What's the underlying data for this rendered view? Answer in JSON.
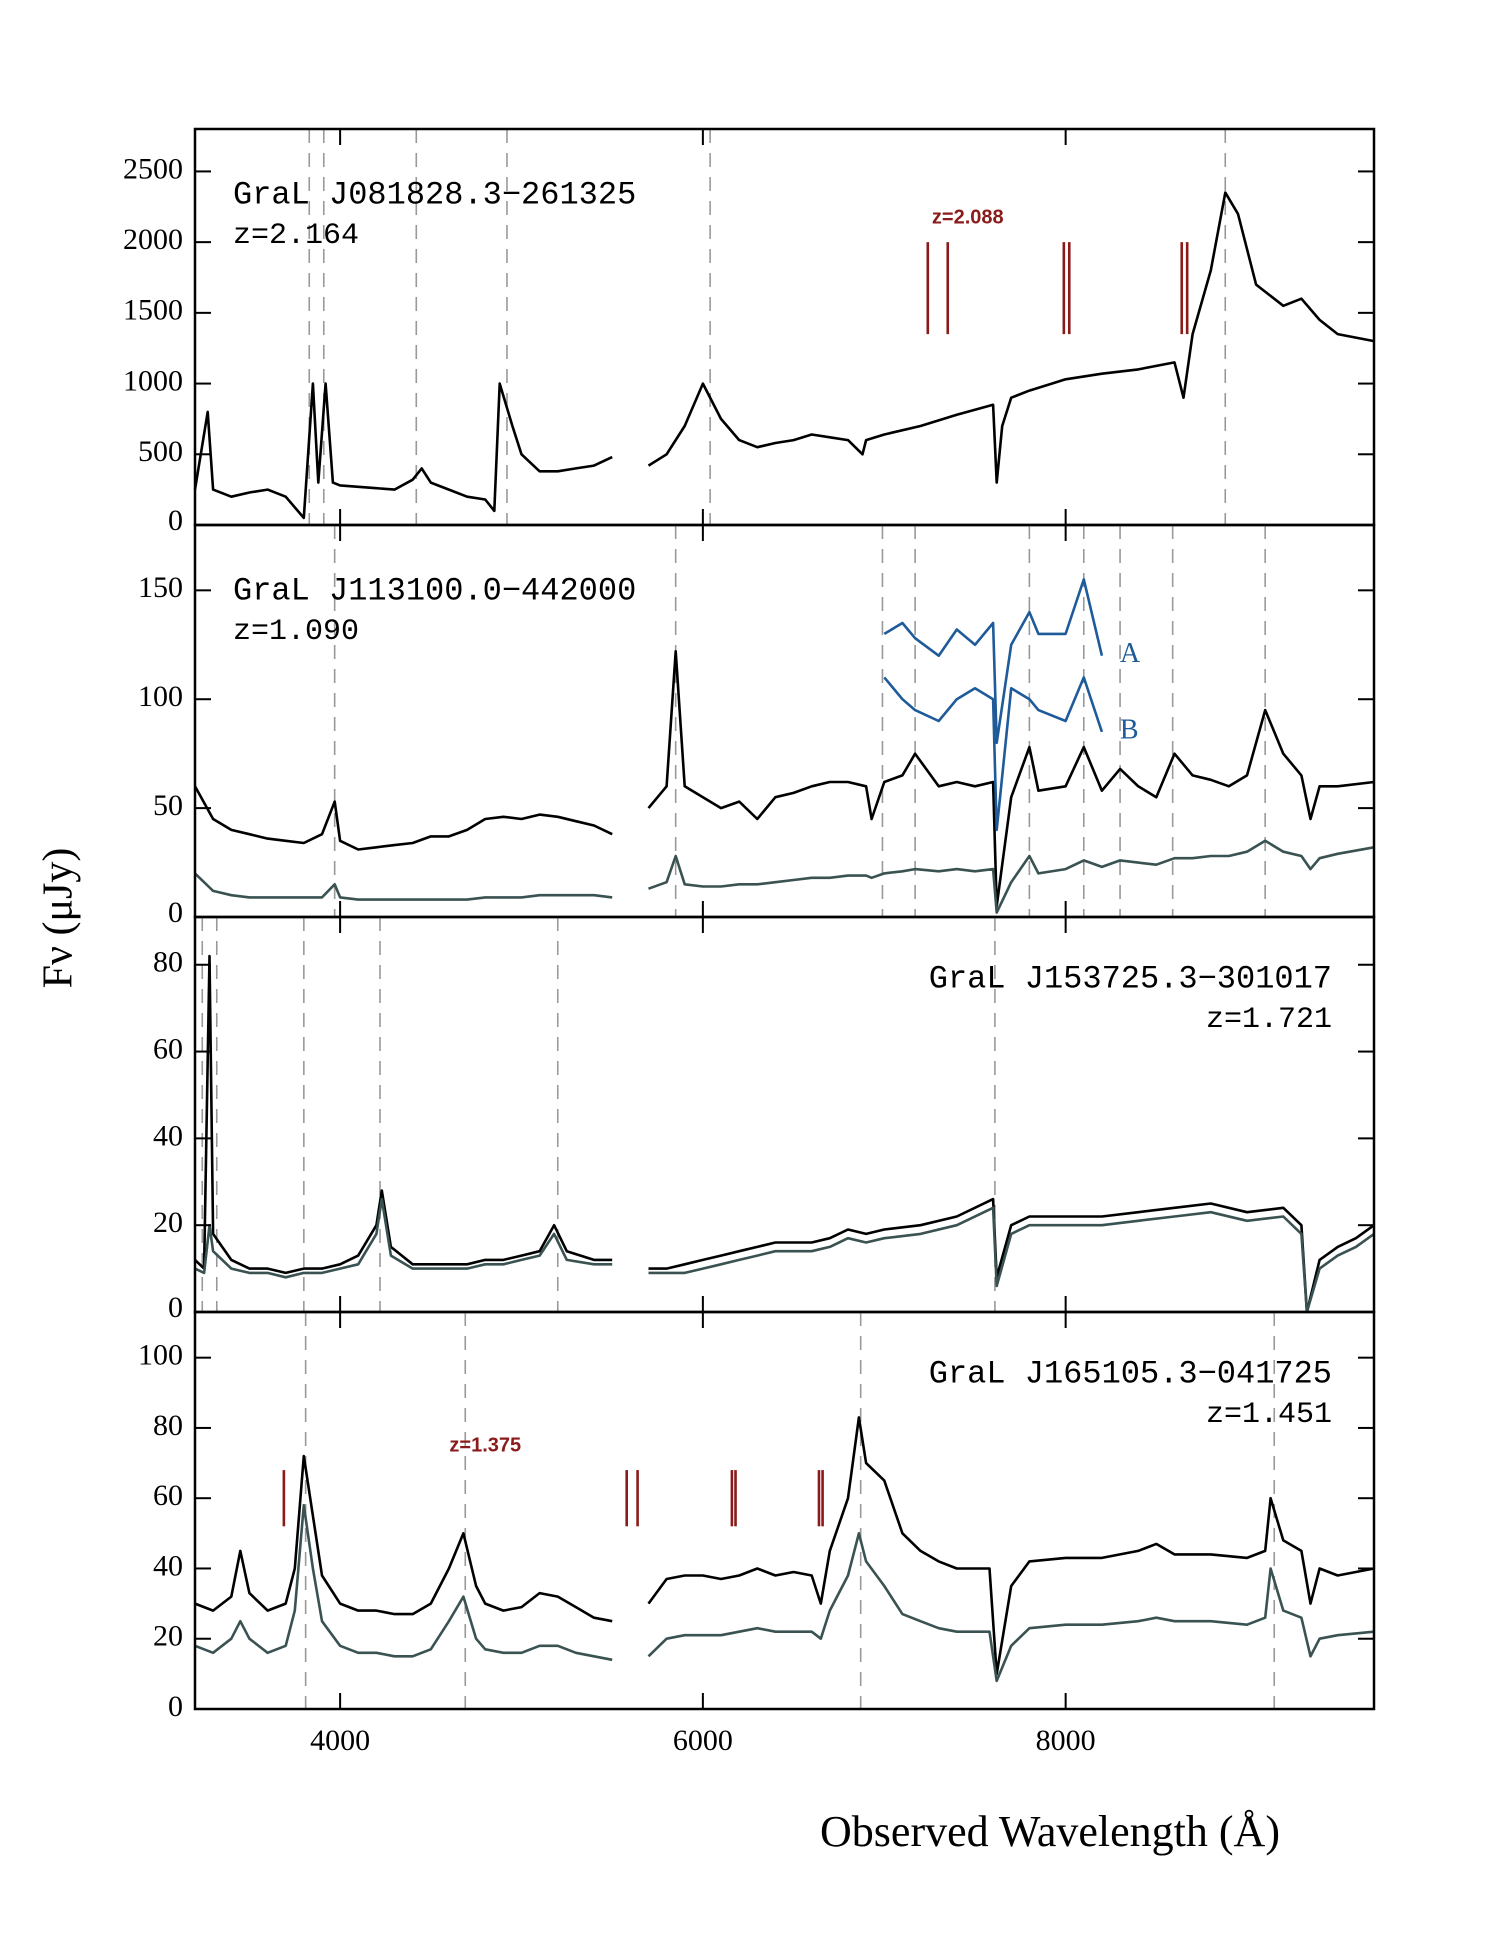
{
  "xlabel": "Observed Wavelength (Å)",
  "ylabel": "Fν (μJy)",
  "chart_data": [
    {
      "type": "line",
      "title": "GraL J081828.3−261325",
      "subtitle": "z=2.164",
      "label_corner": "upper left",
      "xlim": [
        3200,
        9700
      ],
      "xticks": [
        4000,
        6000,
        8000
      ],
      "ylim": [
        0,
        2800
      ],
      "yticks": [
        0,
        500,
        1000,
        1500,
        2000,
        2500
      ],
      "x": [
        3200,
        3270,
        3300,
        3400,
        3500,
        3600,
        3700,
        3800,
        3850,
        3880,
        3920,
        3960,
        4000,
        4100,
        4200,
        4300,
        4400,
        4450,
        4500,
        4600,
        4700,
        4800,
        4850,
        4880,
        4950,
        5000,
        5100,
        5200,
        5300,
        5400,
        5500,
        5600,
        5700,
        5800,
        5900,
        6000,
        6100,
        6200,
        6300,
        6400,
        6500,
        6600,
        6700,
        6800,
        6880,
        6900,
        7000,
        7200,
        7400,
        7600,
        7620,
        7650,
        7700,
        7800,
        8000,
        8200,
        8400,
        8600,
        8650,
        8700,
        8800,
        8880,
        8950,
        9050,
        9200,
        9300,
        9400,
        9500,
        9700
      ],
      "series": [
        {
          "color": "#000000",
          "values": [
            250,
            800,
            250,
            200,
            230,
            250,
            200,
            50,
            1000,
            300,
            1000,
            300,
            280,
            270,
            260,
            250,
            320,
            400,
            300,
            250,
            200,
            180,
            100,
            1000,
            700,
            500,
            380,
            380,
            400,
            420,
            480,
            null,
            420,
            500,
            700,
            1000,
            750,
            600,
            550,
            580,
            600,
            640,
            620,
            600,
            500,
            600,
            640,
            700,
            780,
            850,
            300,
            700,
            900,
            950,
            1030,
            1070,
            1100,
            1150,
            900,
            1350,
            1800,
            2350,
            2200,
            1700,
            1550,
            1600,
            1450,
            1350,
            1300
          ]
        }
      ],
      "reference_lines": [
        3830,
        3910,
        4420,
        4920,
        6040,
        8880
      ],
      "absorber": {
        "label": "z=2.088",
        "color": "#8b1a1a",
        "lines": [
          7240,
          7350,
          7990,
          8020,
          8640,
          8670
        ],
        "span": [
          1350,
          2000
        ]
      }
    },
    {
      "type": "line",
      "title": "GraL J113100.0−442000",
      "subtitle": "z=1.090",
      "label_corner": "upper left",
      "xlim": [
        3200,
        9700
      ],
      "xticks": [
        4000,
        6000,
        8000
      ],
      "ylim": [
        0,
        180
      ],
      "yticks": [
        0,
        50,
        100,
        150
      ],
      "x": [
        3200,
        3300,
        3400,
        3500,
        3600,
        3700,
        3800,
        3900,
        3970,
        4000,
        4100,
        4200,
        4300,
        4400,
        4500,
        4600,
        4700,
        4800,
        4900,
        5000,
        5100,
        5200,
        5300,
        5400,
        5500,
        5600,
        5700,
        5800,
        5850,
        5900,
        6000,
        6100,
        6200,
        6300,
        6400,
        6500,
        6600,
        6700,
        6800,
        6900,
        6930,
        7000,
        7100,
        7170,
        7300,
        7400,
        7500,
        7600,
        7620,
        7700,
        7800,
        7850,
        8000,
        8100,
        8200,
        8300,
        8400,
        8500,
        8600,
        8700,
        8800,
        8900,
        9000,
        9100,
        9200,
        9300,
        9350,
        9400,
        9500,
        9700
      ],
      "series": [
        {
          "color": "#000000",
          "values": [
            60,
            45,
            40,
            38,
            36,
            35,
            34,
            38,
            53,
            35,
            31,
            32,
            33,
            34,
            37,
            37,
            40,
            45,
            46,
            45,
            47,
            46,
            44,
            42,
            38,
            null,
            50,
            60,
            122,
            60,
            55,
            50,
            53,
            45,
            55,
            57,
            60,
            62,
            62,
            60,
            45,
            62,
            65,
            75,
            60,
            62,
            60,
            62,
            5,
            55,
            78,
            58,
            60,
            78,
            58,
            68,
            60,
            55,
            75,
            65,
            63,
            60,
            65,
            95,
            75,
            65,
            45,
            60,
            60,
            62
          ]
        },
        {
          "color": "#3a5252",
          "values": [
            20,
            12,
            10,
            9,
            9,
            9,
            9,
            9,
            15,
            9,
            8,
            8,
            8,
            8,
            8,
            8,
            8,
            9,
            9,
            9,
            10,
            10,
            10,
            10,
            9,
            null,
            13,
            16,
            28,
            15,
            14,
            14,
            15,
            15,
            16,
            17,
            18,
            18,
            19,
            19,
            18,
            20,
            21,
            22,
            21,
            22,
            21,
            22,
            2,
            16,
            28,
            20,
            22,
            26,
            23,
            26,
            25,
            24,
            27,
            27,
            28,
            28,
            30,
            35,
            30,
            28,
            22,
            27,
            29,
            32
          ]
        },
        {
          "name": "A",
          "color": "#1f5a99",
          "x": [
            7000,
            7100,
            7170,
            7300,
            7400,
            7500,
            7600,
            7620,
            7700,
            7800,
            7850,
            8000,
            8100,
            8200
          ],
          "values": [
            130,
            135,
            128,
            120,
            132,
            125,
            135,
            80,
            125,
            140,
            130,
            130,
            155,
            120
          ]
        },
        {
          "name": "B",
          "color": "#1f5a99",
          "x": [
            7000,
            7100,
            7170,
            7300,
            7400,
            7500,
            7600,
            7620,
            7700,
            7800,
            7850,
            8000,
            8100,
            8200
          ],
          "values": [
            110,
            100,
            95,
            90,
            100,
            105,
            100,
            40,
            105,
            100,
            95,
            90,
            110,
            85
          ]
        }
      ],
      "reference_lines": [
        3970,
        5850,
        6990,
        7170,
        7800,
        8100,
        8300,
        8590,
        9100
      ]
    },
    {
      "type": "line",
      "title": "GraL J153725.3−301017",
      "subtitle": "z=1.721",
      "label_corner": "upper right",
      "xlim": [
        3200,
        9700
      ],
      "xticks": [
        4000,
        6000,
        8000
      ],
      "ylim": [
        0,
        91
      ],
      "yticks": [
        0,
        20,
        40,
        60,
        80
      ],
      "x": [
        3200,
        3250,
        3280,
        3300,
        3400,
        3500,
        3600,
        3700,
        3800,
        3900,
        4000,
        4100,
        4200,
        4230,
        4280,
        4400,
        4500,
        4600,
        4700,
        4800,
        4900,
        5000,
        5100,
        5180,
        5250,
        5400,
        5500,
        5600,
        5700,
        5800,
        5900,
        6000,
        6100,
        6200,
        6300,
        6400,
        6500,
        6600,
        6700,
        6800,
        6900,
        7000,
        7200,
        7400,
        7600,
        7620,
        7700,
        7800,
        8000,
        8200,
        8400,
        8600,
        8800,
        9000,
        9200,
        9300,
        9330,
        9400,
        9500,
        9600,
        9700
      ],
      "series": [
        {
          "color": "#000000",
          "values": [
            12,
            10,
            82,
            18,
            12,
            10,
            10,
            9,
            10,
            10,
            11,
            13,
            20,
            28,
            15,
            11,
            11,
            11,
            11,
            12,
            12,
            13,
            14,
            20,
            14,
            12,
            12,
            null,
            10,
            10,
            11,
            12,
            13,
            14,
            15,
            16,
            16,
            16,
            17,
            19,
            18,
            19,
            20,
            22,
            26,
            8,
            20,
            22,
            22,
            22,
            23,
            24,
            25,
            23,
            24,
            20,
            0,
            12,
            15,
            17,
            20
          ]
        },
        {
          "color": "#3a5252",
          "values": [
            10,
            9,
            20,
            14,
            10,
            9,
            9,
            8,
            9,
            9,
            10,
            11,
            18,
            26,
            13,
            10,
            10,
            10,
            10,
            11,
            11,
            12,
            13,
            18,
            12,
            11,
            11,
            null,
            9,
            9,
            9,
            10,
            11,
            12,
            13,
            14,
            14,
            14,
            15,
            17,
            16,
            17,
            18,
            20,
            24,
            6,
            18,
            20,
            20,
            20,
            21,
            22,
            23,
            21,
            22,
            18,
            0,
            10,
            13,
            15,
            18
          ]
        }
      ],
      "reference_lines": [
        3240,
        3320,
        3800,
        4220,
        5200,
        7610
      ]
    },
    {
      "type": "line",
      "title": "GraL J165105.3−041725",
      "subtitle": "z=1.451",
      "label_corner": "upper right",
      "xlim": [
        3200,
        9700
      ],
      "xticks": [
        4000,
        6000,
        8000
      ],
      "ylim": [
        0,
        113
      ],
      "yticks": [
        0,
        20,
        40,
        60,
        80,
        100
      ],
      "x": [
        3200,
        3300,
        3400,
        3450,
        3500,
        3600,
        3700,
        3750,
        3800,
        3850,
        3900,
        4000,
        4100,
        4200,
        4300,
        4400,
        4500,
        4600,
        4680,
        4750,
        4800,
        4900,
        5000,
        5100,
        5200,
        5300,
        5400,
        5500,
        5600,
        5700,
        5800,
        5900,
        6000,
        6100,
        6200,
        6300,
        6400,
        6500,
        6600,
        6650,
        6700,
        6800,
        6860,
        6900,
        7000,
        7100,
        7200,
        7300,
        7400,
        7500,
        7580,
        7620,
        7700,
        7800,
        8000,
        8200,
        8400,
        8500,
        8600,
        8800,
        9000,
        9100,
        9130,
        9200,
        9300,
        9350,
        9400,
        9500,
        9700
      ],
      "series": [
        {
          "color": "#000000",
          "values": [
            30,
            28,
            32,
            45,
            33,
            28,
            30,
            40,
            72,
            55,
            38,
            30,
            28,
            28,
            27,
            27,
            30,
            40,
            50,
            35,
            30,
            28,
            29,
            33,
            32,
            29,
            26,
            25,
            null,
            30,
            37,
            38,
            38,
            37,
            38,
            40,
            38,
            39,
            38,
            30,
            45,
            60,
            83,
            70,
            65,
            50,
            45,
            42,
            40,
            40,
            40,
            10,
            35,
            42,
            43,
            43,
            45,
            47,
            44,
            44,
            43,
            45,
            60,
            48,
            45,
            30,
            40,
            38,
            40
          ]
        },
        {
          "color": "#3a5252",
          "values": [
            18,
            16,
            20,
            25,
            20,
            16,
            18,
            28,
            58,
            40,
            25,
            18,
            16,
            16,
            15,
            15,
            17,
            25,
            32,
            20,
            17,
            16,
            16,
            18,
            18,
            16,
            15,
            14,
            null,
            15,
            20,
            21,
            21,
            21,
            22,
            23,
            22,
            22,
            22,
            20,
            28,
            38,
            50,
            42,
            35,
            27,
            25,
            23,
            22,
            22,
            22,
            8,
            18,
            23,
            24,
            24,
            25,
            26,
            25,
            25,
            24,
            26,
            40,
            28,
            26,
            15,
            20,
            21,
            22
          ]
        }
      ],
      "reference_lines": [
        3810,
        4690,
        6870,
        9150
      ],
      "absorber": {
        "label": "z=1.375",
        "color": "#8b1a1a",
        "lines": [
          3690,
          5580,
          5640,
          6160,
          6180,
          6640,
          6660
        ],
        "span": [
          52,
          68
        ]
      }
    }
  ]
}
